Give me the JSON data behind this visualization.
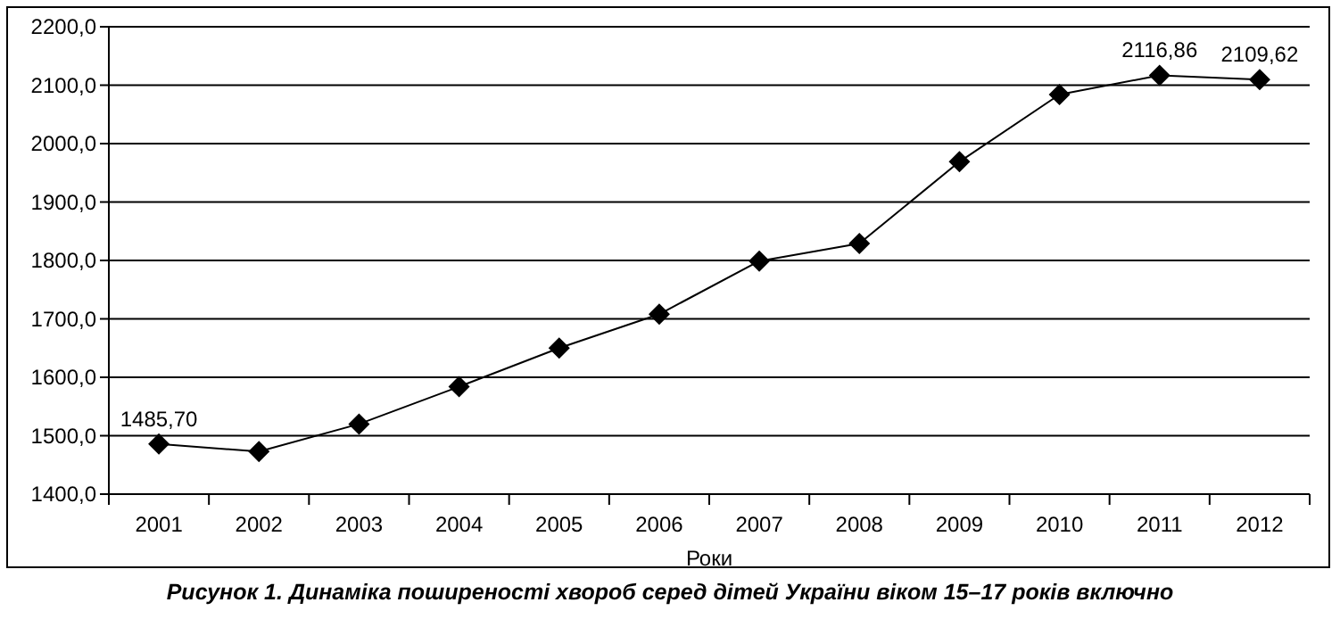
{
  "chart_data": {
    "type": "line",
    "xlabel": "Роки",
    "annotations": [
      "Рисунок 1. Динаміка поширеності хвороб серед дітей України віком 15–17 років включно"
    ],
    "categories": [
      "2001",
      "2002",
      "2003",
      "2004",
      "2005",
      "2006",
      "2007",
      "2008",
      "2009",
      "2010",
      "2011",
      "2012"
    ],
    "series": [
      {
        "color": "#000000",
        "values": [
          1485.7,
          1473,
          1520,
          1584,
          1650,
          1708,
          1799,
          1829,
          1969,
          2084,
          2116.86,
          2109.62
        ],
        "value_labels": [
          "1485,70",
          null,
          null,
          null,
          null,
          null,
          null,
          null,
          null,
          null,
          "2116,86",
          "2109,62"
        ]
      }
    ],
    "ylim": [
      1400,
      2200
    ],
    "yticks": [
      {
        "value": 1400,
        "label": "1400,0"
      },
      {
        "value": 1500,
        "label": "1500,0"
      },
      {
        "value": 1600,
        "label": "1600,0"
      },
      {
        "value": 1700,
        "label": "1700,0"
      },
      {
        "value": 1800,
        "label": "1800,0"
      },
      {
        "value": 1900,
        "label": "1900,0"
      },
      {
        "value": 2000,
        "label": "2000,0"
      },
      {
        "value": 2100,
        "label": "2100,0"
      },
      {
        "value": 2200,
        "label": "2200,0"
      }
    ],
    "grid": "y",
    "marker": "diamond",
    "line_style": "solid"
  }
}
